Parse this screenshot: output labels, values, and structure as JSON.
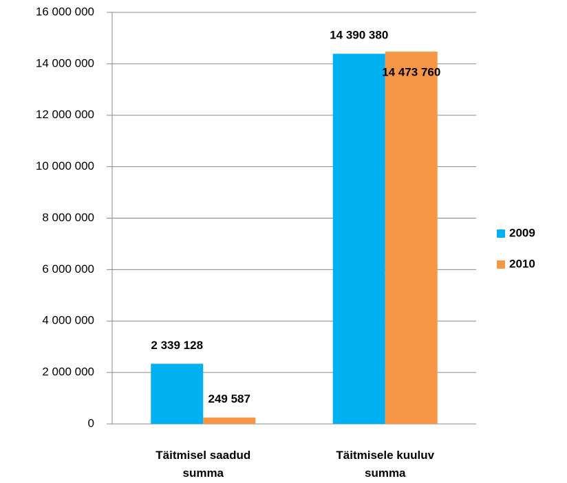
{
  "chart_data": {
    "type": "bar",
    "categories": [
      "Täitmisel saadud summa",
      "Täitmisele kuuluv summa"
    ],
    "series": [
      {
        "name": "2009",
        "color": "#00b0f0",
        "values": [
          2339128,
          14390380
        ],
        "value_labels": [
          "2 339 128",
          "14 390 380"
        ]
      },
      {
        "name": "2010",
        "color": "#f79646",
        "values": [
          249587,
          14473760
        ],
        "value_labels": [
          "249 587",
          "14 473 760"
        ]
      }
    ],
    "ylim": [
      0,
      16000000
    ],
    "yticks": [
      {
        "value": 0,
        "label": "0"
      },
      {
        "value": 2000000,
        "label": "2 000 000"
      },
      {
        "value": 4000000,
        "label": "4 000 000"
      },
      {
        "value": 6000000,
        "label": "6 000 000"
      },
      {
        "value": 8000000,
        "label": "8 000 000"
      },
      {
        "value": 10000000,
        "label": "10 000 000"
      },
      {
        "value": 12000000,
        "label": "12 000 000"
      },
      {
        "value": 14000000,
        "label": "14 000 000"
      },
      {
        "value": 16000000,
        "label": "16 000 000"
      }
    ],
    "grid": true,
    "legend": "right"
  }
}
